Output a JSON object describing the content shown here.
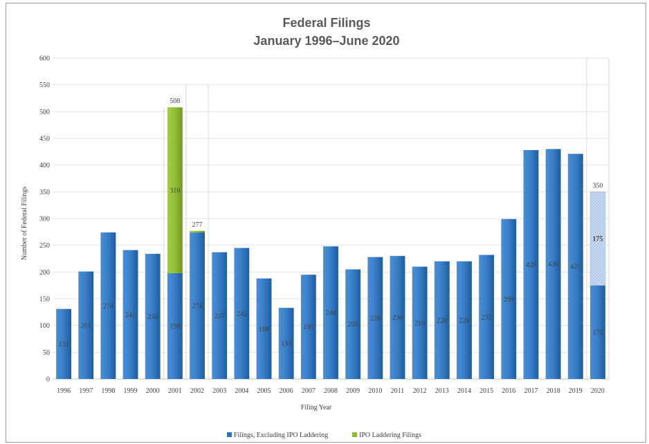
{
  "chart_data": {
    "type": "bar",
    "stacked": true,
    "title": "Federal Filings",
    "subtitle": "January 1996–June 2020",
    "xlabel": "Filing Year",
    "ylabel": "Number of Federal Filings",
    "ylim": [
      0,
      600
    ],
    "yticks": [
      "0",
      "50",
      "100",
      "150",
      "200",
      "250",
      "300",
      "350",
      "400",
      "450",
      "500",
      "550",
      "600"
    ],
    "grid": true,
    "legend_position": "bottom",
    "categories": [
      "1996",
      "1997",
      "1998",
      "1999",
      "2000",
      "2001",
      "2002",
      "2003",
      "2004",
      "2005",
      "2006",
      "2007",
      "2008",
      "2009",
      "2010",
      "2011",
      "2012",
      "2013",
      "2014",
      "2015",
      "2016",
      "2017",
      "2018",
      "2019",
      "2020"
    ],
    "series": [
      {
        "name": "Filings, Excluding IPO Laddering",
        "color": "#2e75b6",
        "values": [
          131,
          201,
          274,
          241,
          234,
          198,
          274,
          237,
          245,
          188,
          133,
          195,
          248,
          205,
          228,
          230,
          210,
          220,
          220,
          232,
          299,
          428,
          430,
          421,
          175
        ]
      },
      {
        "name": "IPO Laddering Filings",
        "color": "#8dbb2f",
        "values": [
          0,
          0,
          0,
          0,
          0,
          310,
          3,
          0,
          0,
          0,
          0,
          0,
          0,
          0,
          0,
          0,
          0,
          0,
          0,
          0,
          0,
          0,
          0,
          0,
          0
        ]
      }
    ],
    "projection": {
      "category": "2020",
      "value": 175,
      "label": "175",
      "color": "#bdd0ea"
    },
    "total_labels": [
      {
        "category": "2001",
        "label": "508"
      },
      {
        "category": "2002",
        "label": "277"
      },
      {
        "category": "2020",
        "label": "350"
      }
    ],
    "segment_labels": [
      {
        "category": "2001",
        "series": "IPO Laddering Filings",
        "label": "310"
      }
    ]
  }
}
